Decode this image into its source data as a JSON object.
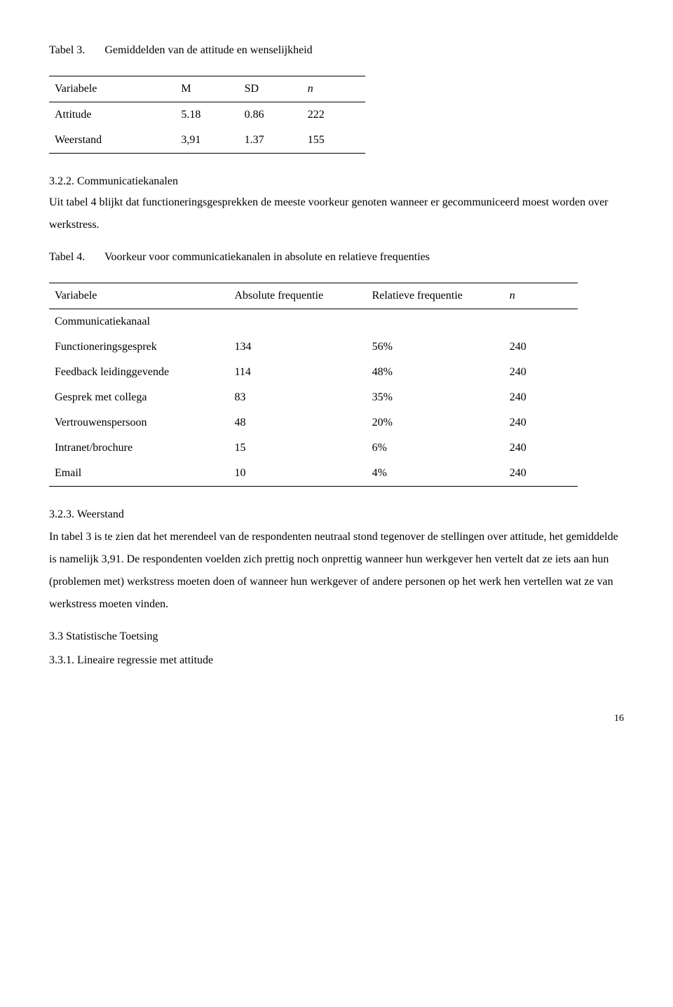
{
  "table3": {
    "label": "Tabel 3.",
    "caption": "Gemiddelden van de attitude en wenselijkheid",
    "headers": {
      "c1": "Variabele",
      "c2": "M",
      "c3": "SD",
      "c4": "n"
    },
    "rows": [
      {
        "c1": "Attitude",
        "c2": "5.18",
        "c3": "0.86",
        "c4": "222"
      },
      {
        "c1": "Weerstand",
        "c2": "3,91",
        "c3": "1.37",
        "c4": "155"
      }
    ]
  },
  "sec322": {
    "heading": "3.2.2. Communicatiekanalen",
    "para": "Uit tabel 4 blijkt dat functioneringsgesprekken de meeste voorkeur genoten wanneer er gecommuniceerd moest worden over werkstress."
  },
  "table4": {
    "label": "Tabel 4.",
    "caption": "Voorkeur voor communicatiekanalen in absolute en relatieve frequenties",
    "headers": {
      "c1": "Variabele",
      "c2": "Absolute frequentie",
      "c3": "Relatieve frequentie",
      "c4": "n"
    },
    "subheader": "Communicatiekanaal",
    "rows": [
      {
        "c1": "Functioneringsgesprek",
        "c2": "134",
        "c3": "56%",
        "c4": "240"
      },
      {
        "c1": "Feedback leidinggevende",
        "c2": "114",
        "c3": "48%",
        "c4": "240"
      },
      {
        "c1": "Gesprek met collega",
        "c2": "83",
        "c3": "35%",
        "c4": "240"
      },
      {
        "c1": "Vertrouwenspersoon",
        "c2": "48",
        "c3": "20%",
        "c4": "240"
      },
      {
        "c1": "Intranet/brochure",
        "c2": "15",
        "c3": "6%",
        "c4": "240"
      },
      {
        "c1": "Email",
        "c2": "10",
        "c3": "4%",
        "c4": "240"
      }
    ]
  },
  "sec323": {
    "heading": "3.2.3. Weerstand",
    "para": "In tabel 3 is te zien dat het merendeel van de respondenten neutraal stond tegenover de stellingen over attitude, het gemiddelde is namelijk 3,91. De respondenten voelden zich prettig noch onprettig wanneer hun werkgever hen vertelt dat ze iets aan hun (problemen met) werkstress moeten doen of wanneer hun werkgever of andere personen op het werk hen vertellen wat ze van werkstress moeten vinden."
  },
  "sec33": {
    "heading": "3.3 Statistische Toetsing",
    "sub": "3.3.1. Lineaire regressie met attitude"
  },
  "pageNumber": "16"
}
